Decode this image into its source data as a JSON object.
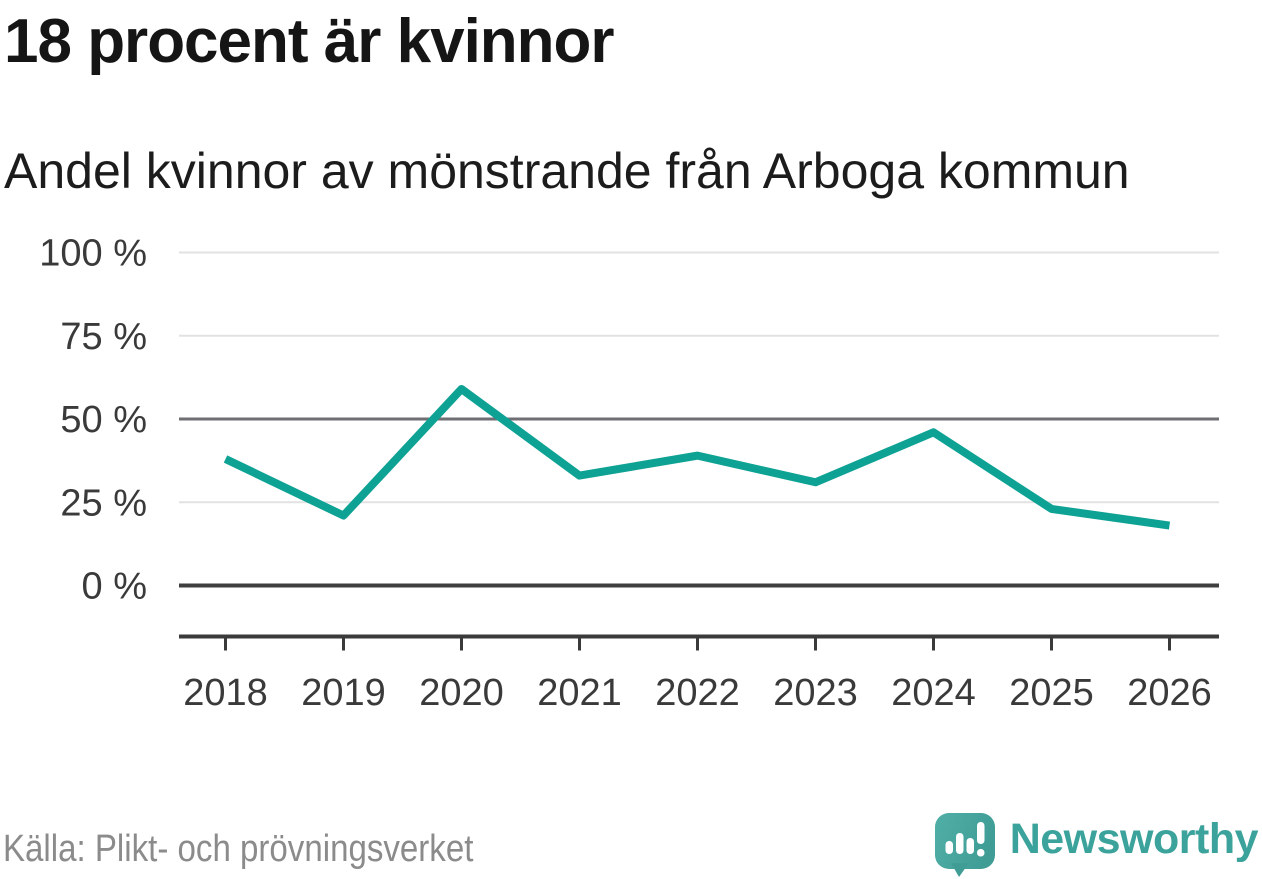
{
  "header": {
    "title": "18 procent är kvinnor",
    "subtitle": "Andel kvinnor av mönstrande från Arboga kommun"
  },
  "chart_data": {
    "type": "line",
    "title": "18 procent är kvinnor",
    "subtitle": "Andel kvinnor av mönstrande från Arboga kommun",
    "categories": [
      "2018",
      "2019",
      "2020",
      "2021",
      "2022",
      "2023",
      "2024",
      "2025",
      "2026"
    ],
    "values": [
      38,
      21,
      59,
      33,
      39,
      31,
      46,
      23,
      18
    ],
    "unit": "%",
    "ylim": [
      0,
      100
    ],
    "yticks": [
      {
        "value": 100,
        "label": "100 %"
      },
      {
        "value": 75,
        "label": "75 %"
      },
      {
        "value": 50,
        "label": "50 %"
      },
      {
        "value": 25,
        "label": "25 %"
      },
      {
        "value": 0,
        "label": "0 %"
      }
    ],
    "grid": true,
    "legend": "none",
    "line_color": "#0da294"
  },
  "footer": {
    "source": "Källa: Plikt- och prövningsverket",
    "logo_text": "Newsworthy"
  },
  "colors": {
    "accent_teal": "#0da294",
    "logo_teal_light": "#50afa7",
    "logo_teal_dark": "#3f9d96",
    "logo_text_teal": "#3ba39b",
    "text_dark": "#151515",
    "text_gray": "#8b8b8b",
    "grid_light": "#e2e2e2",
    "grid_mid": "#6e6e73",
    "axis_dark": "#3a3a3a"
  }
}
